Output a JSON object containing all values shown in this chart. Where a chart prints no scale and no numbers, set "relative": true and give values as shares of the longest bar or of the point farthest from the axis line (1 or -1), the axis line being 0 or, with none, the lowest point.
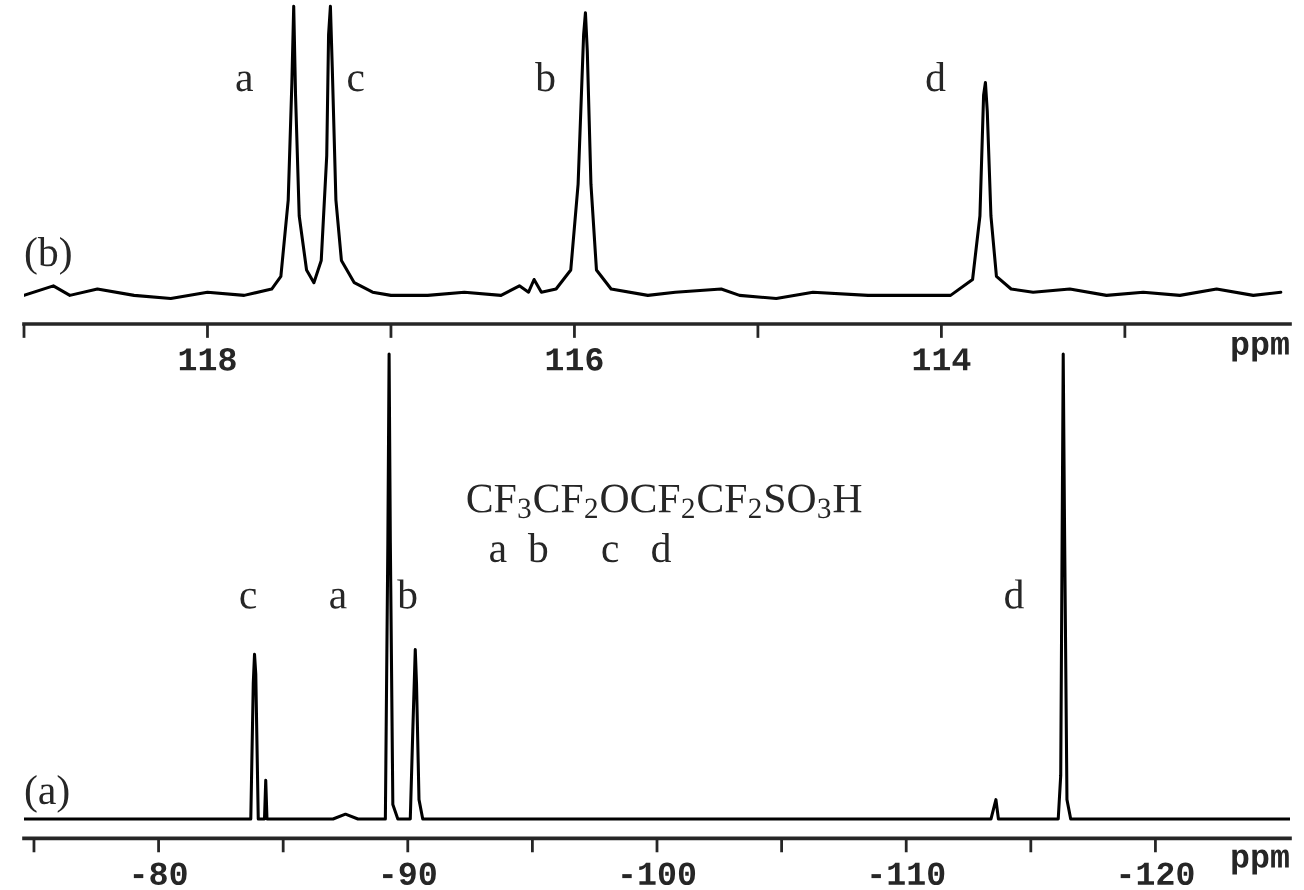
{
  "chart_data": [
    {
      "type": "line",
      "relative": true,
      "xlabel": "ppm",
      "xlim": [
        119.0,
        112.1
      ],
      "xticks": [
        {
          "value": 119,
          "label": null
        },
        118,
        {
          "value": 117,
          "label": null
        },
        116,
        {
          "value": 115,
          "label": null
        },
        114,
        {
          "value": 113,
          "label": null
        }
      ],
      "grid": false,
      "legend": false,
      "tick_labels": "x",
      "marker": "none",
      "line_style": "solid",
      "annotations": [
        "(b)",
        "a",
        "c",
        "b",
        "d"
      ],
      "series": [
        {
          "color": "#000000",
          "x": [
            119.0,
            118.84,
            118.75,
            118.6,
            118.4,
            118.2,
            118.0,
            117.8,
            117.65,
            117.6,
            117.56,
            117.54,
            117.53,
            117.52,
            117.5,
            117.46,
            117.42,
            117.38,
            117.35,
            117.34,
            117.33,
            117.32,
            117.3,
            117.27,
            117.2,
            117.1,
            117.0,
            116.8,
            116.6,
            116.4,
            116.3,
            116.25,
            116.22,
            116.18,
            116.1,
            116.02,
            115.98,
            115.95,
            115.94,
            115.93,
            115.91,
            115.88,
            115.8,
            115.6,
            115.45,
            115.2,
            115.1,
            114.9,
            114.7,
            114.4,
            114.2,
            113.95,
            113.83,
            113.79,
            113.77,
            113.76,
            113.75,
            113.73,
            113.7,
            113.62,
            113.5,
            113.3,
            113.1,
            112.9,
            112.7,
            112.5,
            112.3,
            112.15
          ],
          "values": [
            0.09,
            0.12,
            0.09,
            0.11,
            0.09,
            0.08,
            0.1,
            0.09,
            0.11,
            0.15,
            0.39,
            0.76,
            1.0,
            0.72,
            0.34,
            0.17,
            0.13,
            0.2,
            0.53,
            0.91,
            1.0,
            0.81,
            0.39,
            0.2,
            0.13,
            0.1,
            0.09,
            0.09,
            0.1,
            0.09,
            0.12,
            0.1,
            0.14,
            0.1,
            0.11,
            0.17,
            0.44,
            0.91,
            0.98,
            0.86,
            0.44,
            0.17,
            0.11,
            0.09,
            0.1,
            0.11,
            0.09,
            0.08,
            0.1,
            0.09,
            0.09,
            0.09,
            0.14,
            0.34,
            0.72,
            0.76,
            0.67,
            0.34,
            0.15,
            0.11,
            0.1,
            0.11,
            0.09,
            0.1,
            0.09,
            0.11,
            0.09,
            0.1
          ]
        }
      ]
    },
    {
      "type": "line",
      "relative": true,
      "xlabel": "ppm",
      "xlim": [
        -74.6,
        -125.4
      ],
      "xticks": [
        {
          "value": -75,
          "label": null
        },
        -80,
        {
          "value": -85,
          "label": null
        },
        -90,
        {
          "value": -95,
          "label": null
        },
        -100,
        {
          "value": -105,
          "label": null
        },
        -110,
        {
          "value": -115,
          "label": null
        },
        -120
      ],
      "grid": false,
      "legend": false,
      "tick_labels": "x",
      "marker": "none",
      "line_style": "solid",
      "annotations": [
        "(a)",
        "CF$_{3}$CF$_{2}$OCF$_{2}$CF$_{2}$SO$_{3}$H",
        "a  b     c   d",
        "c",
        "a",
        "b",
        "d"
      ],
      "series": [
        {
          "color": "#000000",
          "x": [
            -74.6,
            -80,
            -83.7,
            -83.8,
            -83.85,
            -83.9,
            -84.0,
            -84.25,
            -84.3,
            -84.35,
            -87,
            -87.5,
            -88,
            -89.1,
            -89.2,
            -89.25,
            -89.3,
            -89.4,
            -89.6,
            -90.1,
            -90.2,
            -90.3,
            -90.35,
            -90.45,
            -90.6,
            -100,
            -113.4,
            -113.5,
            -113.6,
            -113.7,
            -116.1,
            -116.2,
            -116.3,
            -116.35,
            -116.45,
            -116.6,
            -125.4
          ],
          "values": [
            0.04,
            0.04,
            0.04,
            0.32,
            0.38,
            0.34,
            0.04,
            0.04,
            0.12,
            0.04,
            0.04,
            0.05,
            0.04,
            0.04,
            0.61,
            1.0,
            0.61,
            0.07,
            0.04,
            0.04,
            0.22,
            0.39,
            0.32,
            0.08,
            0.04,
            0.04,
            0.04,
            0.06,
            0.08,
            0.04,
            0.04,
            0.13,
            1.0,
            0.66,
            0.08,
            0.04,
            0.04
          ]
        }
      ]
    }
  ]
}
